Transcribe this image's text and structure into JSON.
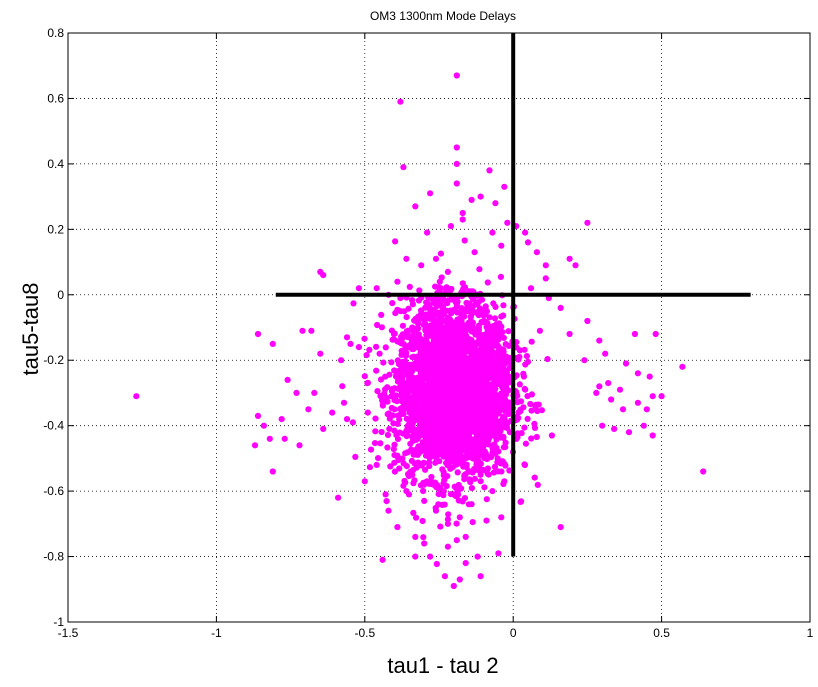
{
  "chart_data": {
    "type": "scatter",
    "title": "OM3 1300nm Mode Delays",
    "xlabel": "tau1 - tau 2",
    "ylabel": "tau5-tau8",
    "xlim": [
      -1.5,
      1
    ],
    "ylim": [
      -1,
      0.8
    ],
    "xticks": [
      -1.5,
      -1,
      -0.5,
      0,
      0.5,
      1
    ],
    "yticks": [
      -1,
      -0.8,
      -0.6,
      -0.4,
      -0.2,
      0,
      0.2,
      0.4,
      0.6,
      0.8
    ],
    "xtick_labels": [
      "-1.5",
      "-1",
      "-0.5",
      "0",
      "0.5",
      "1"
    ],
    "ytick_labels": [
      "-1",
      "-0.8",
      "-0.6",
      "-0.4",
      "-0.2",
      "0",
      "0.2",
      "0.4",
      "0.6",
      "0.8"
    ],
    "grid": true,
    "marker_color": "#FF00FF",
    "reference_lines": [
      {
        "x": [
          -0.8,
          0.8
        ],
        "y": [
          0,
          0
        ],
        "color": "#000000"
      },
      {
        "x": [
          0,
          0
        ],
        "y": [
          -0.8,
          0.8
        ],
        "color": "#000000"
      }
    ],
    "series": [
      {
        "points": [
          [
            -1.27,
            -0.31
          ],
          [
            -0.19,
            0.67
          ],
          [
            -0.38,
            0.59
          ],
          [
            -0.19,
            0.45
          ],
          [
            -0.19,
            0.4
          ],
          [
            -0.37,
            0.39
          ],
          [
            -0.08,
            0.38
          ],
          [
            -0.03,
            0.33
          ],
          [
            -0.19,
            0.34
          ],
          [
            -0.28,
            0.31
          ],
          [
            -0.14,
            0.29
          ],
          [
            -0.11,
            0.3
          ],
          [
            -0.06,
            0.28
          ],
          [
            -0.17,
            0.25
          ],
          [
            -0.33,
            0.27
          ],
          [
            -0.02,
            0.22
          ],
          [
            0.25,
            0.22
          ],
          [
            -0.21,
            0.21
          ],
          [
            -0.29,
            0.19
          ],
          [
            -0.17,
            0.23
          ],
          [
            -0.07,
            0.19
          ],
          [
            0.04,
            0.19
          ],
          [
            0.01,
            0.21
          ],
          [
            -0.36,
            0.11
          ],
          [
            -0.31,
            0.09
          ],
          [
            -0.26,
            0.11
          ],
          [
            -0.13,
            0.13
          ],
          [
            -0.04,
            0.15
          ],
          [
            0.05,
            0.16
          ],
          [
            0.08,
            0.13
          ],
          [
            -0.64,
            0.06
          ],
          [
            -0.65,
            0.07
          ],
          [
            -0.22,
            0.07
          ],
          [
            0.11,
            0.09
          ],
          [
            0.19,
            0.11
          ],
          [
            0.11,
            0.05
          ],
          [
            -0.52,
            0.02
          ],
          [
            -0.39,
            0.04
          ],
          [
            -0.46,
            0.02
          ],
          [
            -0.42,
            0.0
          ],
          [
            -0.38,
            -0.01
          ],
          [
            0.06,
            0.02
          ],
          [
            0.12,
            -0.01
          ],
          [
            0.21,
            0.09
          ],
          [
            -0.38,
            -0.05
          ],
          [
            -0.34,
            -0.1
          ],
          [
            0.16,
            -0.04
          ],
          [
            0.25,
            -0.08
          ],
          [
            0.09,
            -0.11
          ],
          [
            -0.68,
            -0.11
          ],
          [
            -0.71,
            -0.11
          ],
          [
            -0.65,
            -0.18
          ],
          [
            -0.52,
            -0.16
          ],
          [
            -0.45,
            -0.18
          ],
          [
            -0.56,
            -0.13
          ],
          [
            0.19,
            -0.12
          ],
          [
            0.29,
            -0.14
          ],
          [
            0.41,
            -0.12
          ],
          [
            0.48,
            -0.12
          ],
          [
            -0.81,
            -0.15
          ],
          [
            -0.86,
            -0.12
          ],
          [
            -0.58,
            -0.2
          ],
          [
            0.31,
            -0.18
          ],
          [
            0.38,
            -0.21
          ],
          [
            0.24,
            -0.2
          ],
          [
            0.42,
            -0.24
          ],
          [
            0.46,
            -0.25
          ],
          [
            0.57,
            -0.22
          ],
          [
            -0.76,
            -0.26
          ],
          [
            -0.67,
            -0.3
          ],
          [
            -0.69,
            -0.35
          ],
          [
            -0.73,
            -0.3
          ],
          [
            -0.78,
            -0.38
          ],
          [
            -0.84,
            -0.4
          ],
          [
            -0.86,
            -0.37
          ],
          [
            -0.64,
            -0.41
          ],
          [
            -0.61,
            -0.36
          ],
          [
            -0.56,
            -0.38
          ],
          [
            -0.57,
            -0.33
          ],
          [
            -0.49,
            -0.36
          ],
          [
            -0.54,
            -0.39
          ],
          [
            0.29,
            -0.28
          ],
          [
            0.33,
            -0.32
          ],
          [
            0.37,
            -0.35
          ],
          [
            0.42,
            -0.33
          ],
          [
            0.47,
            -0.31
          ],
          [
            0.32,
            -0.27
          ],
          [
            0.28,
            -0.3
          ],
          [
            0.36,
            -0.29
          ],
          [
            0.45,
            -0.35
          ],
          [
            0.5,
            -0.31
          ],
          [
            0.44,
            -0.4
          ],
          [
            0.39,
            -0.42
          ],
          [
            0.34,
            -0.41
          ],
          [
            0.3,
            -0.4
          ],
          [
            0.47,
            -0.43
          ],
          [
            -0.82,
            -0.44
          ],
          [
            -0.77,
            -0.44
          ],
          [
            -0.87,
            -0.46
          ],
          [
            -0.72,
            -0.46
          ],
          [
            -0.81,
            -0.54
          ],
          [
            -0.59,
            -0.62
          ],
          [
            -0.5,
            -0.57
          ],
          [
            -0.46,
            -0.52
          ],
          [
            -0.4,
            -0.49
          ],
          [
            0.64,
            -0.54
          ],
          [
            0.16,
            -0.71
          ],
          [
            -0.43,
            -0.61
          ],
          [
            -0.42,
            -0.66
          ],
          [
            -0.36,
            -0.6
          ],
          [
            -0.39,
            -0.71
          ],
          [
            -0.33,
            -0.74
          ],
          [
            -0.28,
            -0.8
          ],
          [
            -0.3,
            -0.76
          ],
          [
            -0.22,
            -0.77
          ],
          [
            -0.19,
            -0.75
          ],
          [
            -0.16,
            -0.74
          ],
          [
            -0.23,
            -0.86
          ],
          [
            -0.2,
            -0.89
          ],
          [
            -0.18,
            -0.87
          ],
          [
            -0.11,
            -0.86
          ],
          [
            -0.16,
            -0.82
          ],
          [
            -0.12,
            -0.8
          ],
          [
            -0.05,
            -0.79
          ],
          [
            -0.33,
            -0.8
          ],
          [
            -0.44,
            -0.81
          ],
          [
            -0.22,
            -0.7
          ],
          [
            -0.18,
            -0.68
          ],
          [
            -0.09,
            -0.69
          ],
          [
            -0.04,
            -0.68
          ],
          [
            -0.3,
            -0.63
          ],
          [
            -0.26,
            -0.66
          ],
          [
            -0.14,
            -0.64
          ],
          [
            -0.34,
            -0.55
          ],
          [
            -0.27,
            -0.58
          ],
          [
            -0.07,
            -0.6
          ],
          [
            -0.03,
            -0.57
          ],
          [
            -0.11,
            -0.55
          ]
        ]
      }
    ],
    "dense_cluster": {
      "center": [
        -0.2,
        -0.3
      ],
      "spread": [
        0.1,
        0.13
      ],
      "count": 2600,
      "core_region": {
        "x": [
          -0.38,
          -0.02
        ],
        "y": [
          -0.5,
          0.1
        ]
      }
    }
  }
}
